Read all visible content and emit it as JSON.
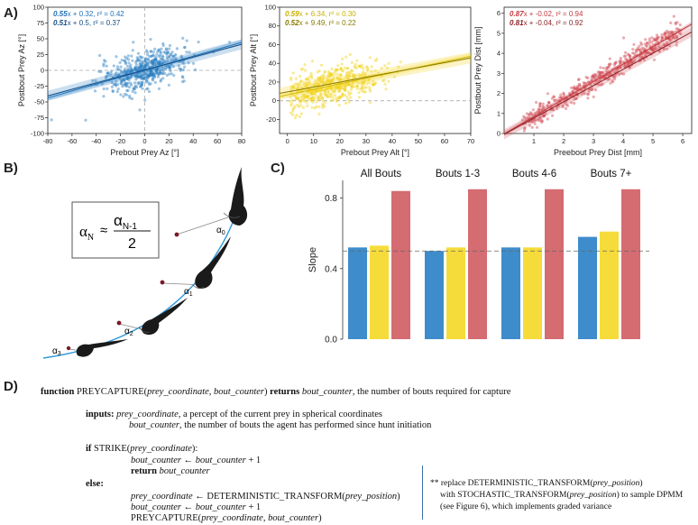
{
  "panel_labels": {
    "a": "A)",
    "b": "B)",
    "c": "C)",
    "d": "D)"
  },
  "chart_data": [
    {
      "type": "scatter",
      "xlabel": "Prebout Prey Az [°]",
      "ylabel": "Postbout Prey Az [°]",
      "xlim": [
        -80,
        80
      ],
      "ylim": [
        -100,
        100
      ],
      "xticks": [
        -80,
        -60,
        -40,
        -20,
        0,
        20,
        40,
        60,
        80
      ],
      "yticks": [
        -100,
        -75,
        -50,
        -25,
        0,
        25,
        50,
        75,
        100
      ],
      "annotations": [
        {
          "slope": "0.55",
          "text": "x + 0.32, r² = 0.42",
          "color": "#1f6fb5"
        },
        {
          "slope": "0.51",
          "text": "x + 0.5, r² = 0.37",
          "color": "#174f85"
        }
      ],
      "fits": [
        {
          "slope": 0.55,
          "intercept": 0.32
        },
        {
          "slope": 0.51,
          "intercept": 0.5
        }
      ],
      "point_color": "#2a7fc2"
    },
    {
      "type": "scatter",
      "xlabel": "Prebout Prey Alt [°]",
      "ylabel": "Postbout Prey Alt [°]",
      "xlim": [
        -3,
        70
      ],
      "ylim": [
        -35,
        100
      ],
      "xticks": [
        0,
        10,
        20,
        30,
        40,
        50,
        60,
        70
      ],
      "yticks": [
        -20,
        0,
        20,
        40,
        60,
        80,
        100
      ],
      "annotations": [
        {
          "slope": "0.59",
          "text": "x + 6.34, r² = 0.30",
          "color": "#c9b000"
        },
        {
          "slope": "0.52",
          "text": "x + 9.49, r² = 0.22",
          "color": "#8a7a00"
        }
      ],
      "fits": [
        {
          "slope": 0.59,
          "intercept": 6.34
        },
        {
          "slope": 0.52,
          "intercept": 9.49
        }
      ],
      "point_color": "#f2d21a"
    },
    {
      "type": "scatter",
      "xlabel": "Preebout Prey Dist [mm]",
      "ylabel": "Postbout Prey Dist [mm]",
      "xlim": [
        0,
        6.3
      ],
      "ylim": [
        0,
        6.3
      ],
      "xticks": [
        1,
        2,
        3,
        4,
        5,
        6
      ],
      "yticks": [
        0,
        1,
        2,
        3,
        4,
        5,
        6
      ],
      "annotations": [
        {
          "slope": "0.87",
          "text": "x + -0.02, r² = 0.94",
          "color": "#c0393f"
        },
        {
          "slope": "0.81",
          "text": "x + -0.04, r² = 0.92",
          "color": "#8a2428"
        }
      ],
      "fits": [
        {
          "slope": 0.87,
          "intercept": -0.02
        },
        {
          "slope": 0.81,
          "intercept": -0.04
        }
      ],
      "point_color": "#d04a52"
    },
    {
      "type": "bar",
      "ylabel": "Slope",
      "ylim": [
        0,
        0.9
      ],
      "yticks": [
        "0.0",
        "0.4",
        "0.8"
      ],
      "groups": [
        "All Bouts",
        "Bouts 1-3",
        "Bouts 4-6",
        "Bouts 7+"
      ],
      "series": [
        {
          "values": [
            0.52,
            0.5,
            0.52,
            0.58
          ],
          "color": "#3e8ccb"
        },
        {
          "values": [
            0.53,
            0.52,
            0.52,
            0.61
          ],
          "color": "#f6dc3a"
        },
        {
          "values": [
            0.84,
            0.85,
            0.85,
            0.85
          ],
          "color": "#d46c72"
        }
      ],
      "reference_line": 0.5
    }
  ],
  "diagram_b": {
    "formula_lhs": "α",
    "formula_lhs_sub": "N",
    "formula_approx": "≈",
    "formula_num": "α",
    "formula_num_sub": "N-1",
    "formula_den": "2",
    "angle_labels": [
      {
        "a": "α",
        "s": "0"
      },
      {
        "a": "α",
        "s": "1"
      },
      {
        "a": "α",
        "s": "2"
      },
      {
        "a": "α",
        "s": "3"
      }
    ]
  },
  "algorithm": {
    "kw_function": "function",
    "name": "PREYCAPTURE",
    "arg1": "prey_coordinate",
    "arg2": "bout_counter",
    "kw_returns": "returns",
    "ret": "bout_counter",
    "ret_desc": ", the number of bouts required for capture",
    "kw_inputs": "inputs:",
    "in1": "prey_coordinate",
    "in1_desc": ", a percept of the current prey in spherical coordinates",
    "in2": "bout_counter",
    "in2_desc": ", the number of bouts the agent has performed since hunt initiation",
    "kw_if": "if",
    "strike": "STRIKE(",
    "strike_close": "):",
    "bc": "bout_counter",
    "arrow": " ← ",
    "plus1": " + 1",
    "kw_return": "return",
    "kw_else": "else:",
    "det": "DETERMINISTIC_TRANSFORM(",
    "prey_position": "prey_position",
    "close": ")",
    "recurse": "PREYCAPTURE(",
    "comma": ", ",
    "note_prefix": "** replace ",
    "note_det": "DETERMINISTIC_TRANSFORM(",
    "note_line2a": "with ",
    "note_stoch": "STOCHASTIC_TRANSFORM(",
    "note_line2b": ") to sample DPMM",
    "note_line3": "(see Figure 6), which implements graded variance"
  }
}
